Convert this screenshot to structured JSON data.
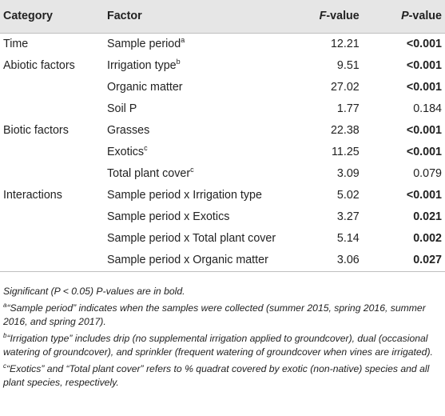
{
  "table": {
    "headers": {
      "category": "Category",
      "factor": "Factor",
      "f_value_letter": "F",
      "f_value_suffix": "-value",
      "p_value_letter": "P",
      "p_value_suffix": "-value"
    },
    "rows": [
      {
        "category": "Time",
        "factor": "Sample period",
        "factor_sup": "a",
        "f": "12.21",
        "p": "<0.001",
        "p_bold": true
      },
      {
        "category": "Abiotic factors",
        "factor": "Irrigation type",
        "factor_sup": "b",
        "f": "9.51",
        "p": "<0.001",
        "p_bold": true
      },
      {
        "category": "",
        "factor": "Organic matter",
        "factor_sup": "",
        "f": "27.02",
        "p": "<0.001",
        "p_bold": true
      },
      {
        "category": "",
        "factor": "Soil P",
        "factor_sup": "",
        "f": "1.77",
        "p": "0.184",
        "p_bold": false
      },
      {
        "category": "Biotic factors",
        "factor": "Grasses",
        "factor_sup": "",
        "f": "22.38",
        "p": "<0.001",
        "p_bold": true
      },
      {
        "category": "",
        "factor": "Exotics",
        "factor_sup": "c",
        "f": "11.25",
        "p": "<0.001",
        "p_bold": true
      },
      {
        "category": "",
        "factor": "Total plant cover",
        "factor_sup": "c",
        "f": "3.09",
        "p": "0.079",
        "p_bold": false
      },
      {
        "category": "Interactions",
        "factor": "Sample period x Irrigation type",
        "factor_sup": "",
        "f": "5.02",
        "p": "<0.001",
        "p_bold": true
      },
      {
        "category": "",
        "factor": "Sample period x Exotics",
        "factor_sup": "",
        "f": "3.27",
        "p": "0.021",
        "p_bold": true
      },
      {
        "category": "",
        "factor": "Sample period x Total plant cover",
        "factor_sup": "",
        "f": "5.14",
        "p": "0.002",
        "p_bold": true
      },
      {
        "category": "",
        "factor": "Sample period x Organic matter",
        "factor_sup": "",
        "f": "3.06",
        "p": "0.027",
        "p_bold": true
      }
    ]
  },
  "notes": {
    "significance": "Significant (P < 0.05) P-values are in bold.",
    "footnotes": [
      {
        "mark": "a",
        "text": "“Sample period” indicates when the samples were collected (summer 2015, spring 2016, summer 2016, and spring 2017)."
      },
      {
        "mark": "b",
        "text": "“Irrigation type” includes drip (no supplemental irrigation applied to groundcover), dual (occasional watering of groundcover), and sprinkler (frequent watering of groundcover when vines are irrigated)."
      },
      {
        "mark": "c",
        "text": "“Exotics” and “Total plant cover” refers to % quadrat covered by exotic (non-native) species and all plant species, respectively."
      }
    ]
  }
}
